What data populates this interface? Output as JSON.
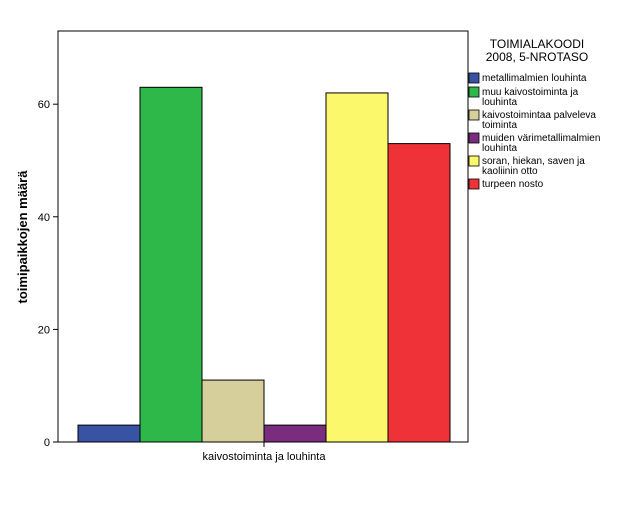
{
  "chart_data": {
    "type": "bar",
    "categories": [
      "kaivostoiminta ja louhinta"
    ],
    "ylabel": "toimipaikkojen määrä",
    "xlabel": "",
    "ylim": [
      0,
      73
    ],
    "yticks": [
      0,
      20,
      40,
      60
    ],
    "legend": {
      "title": [
        "TOIMIALAKOODI",
        "2008, 5-NROTASO"
      ],
      "placement": "right"
    },
    "series": [
      {
        "name": [
          "metallimalmien louhinta"
        ],
        "values": [
          3
        ],
        "color": "#3953a4"
      },
      {
        "name": [
          "muu kaivostoiminta ja",
          "louhinta"
        ],
        "values": [
          63
        ],
        "color": "#2eb84a"
      },
      {
        "name": [
          "kaivostoimintaa palveleva",
          "toiminta"
        ],
        "values": [
          11
        ],
        "color": "#d6cf9b"
      },
      {
        "name": [
          "muiden värimetallimalmien",
          "louhinta"
        ],
        "values": [
          3
        ],
        "color": "#7a2c7e"
      },
      {
        "name": [
          "soran, hiekan, saven ja",
          "kaoliinin otto"
        ],
        "values": [
          62
        ],
        "color": "#fbf86c"
      },
      {
        "name": [
          "turpeen nosto"
        ],
        "values": [
          53
        ],
        "color": "#ef3238"
      }
    ]
  }
}
